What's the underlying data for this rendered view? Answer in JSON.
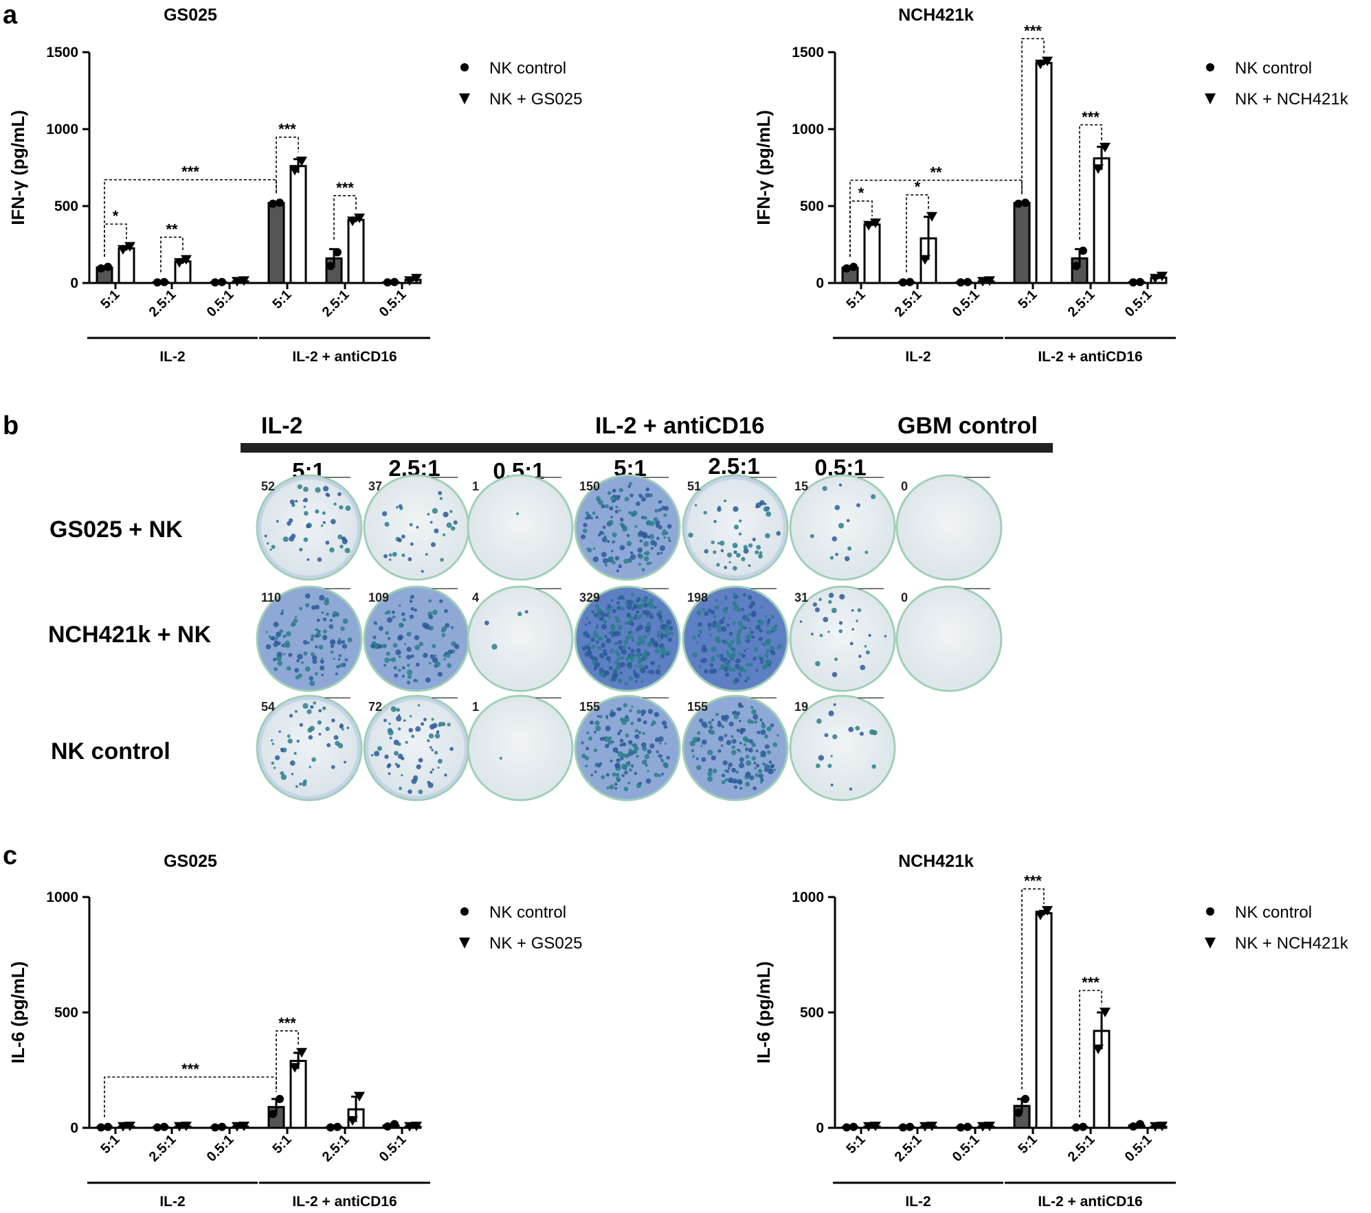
{
  "panel_letters": [
    "a",
    "b",
    "c"
  ],
  "legend_markers": {
    "control": "circle",
    "treated": "triangle-down"
  },
  "colors": {
    "control_bar": "#555555",
    "treated_bar": "#ffffff",
    "axis": "#000000",
    "well_border": "#9fd0b4",
    "spot": "#2c7f8c"
  },
  "chart_data": [
    {
      "id": "a-gs025",
      "type": "bar",
      "title": "GS025",
      "ylabel": "IFN-γ (pg/mL)",
      "ylim": [
        0,
        1500
      ],
      "yticks": [
        "0",
        "500",
        "1000",
        "1500"
      ],
      "categories": [
        "5:1",
        "2.5:1",
        "0.5:1",
        "5:1",
        "2.5:1",
        "0.5:1"
      ],
      "groups": [
        {
          "label": "IL-2",
          "span": [
            0,
            2
          ]
        },
        {
          "label": "IL-2 + antiCD16",
          "span": [
            3,
            5
          ]
        }
      ],
      "series": [
        {
          "name": "NK control",
          "values": [
            100,
            5,
            5,
            520,
            160,
            5
          ],
          "errors": [
            8,
            2,
            2,
            8,
            60,
            2
          ],
          "points": [
            [
              95,
              105
            ],
            [
              4,
              6
            ],
            [
              4,
              6
            ],
            [
              515,
              522
            ],
            [
              110,
              200
            ],
            [
              4,
              6
            ]
          ]
        },
        {
          "name": "NK + GS025",
          "values": [
            225,
            140,
            10,
            760,
            410,
            20
          ],
          "errors": [
            15,
            15,
            5,
            45,
            15,
            10
          ],
          "points": [
            [
              215,
              235
            ],
            [
              130,
              150
            ],
            [
              8,
              12
            ],
            [
              730,
              790
            ],
            [
              400,
              420
            ],
            [
              12,
              28
            ]
          ]
        }
      ],
      "annotations": [
        {
          "text": "*",
          "from": [
            0,
            0
          ],
          "to": [
            0,
            1
          ]
        },
        {
          "text": "**",
          "from": [
            1,
            0
          ],
          "to": [
            1,
            1
          ]
        },
        {
          "text": "***",
          "from": [
            3,
            0
          ],
          "to": [
            3,
            1
          ]
        },
        {
          "text": "***",
          "from": [
            4,
            0
          ],
          "to": [
            4,
            1
          ]
        },
        {
          "text": "***",
          "from": [
            0,
            0
          ],
          "to": [
            3,
            0
          ]
        }
      ]
    },
    {
      "id": "a-nch421k",
      "type": "bar",
      "title": "NCH421k",
      "ylabel": "IFN-γ (pg/mL)",
      "ylim": [
        0,
        1500
      ],
      "yticks": [
        "0",
        "500",
        "1000",
        "1500"
      ],
      "categories": [
        "5:1",
        "2.5:1",
        "0.5:1",
        "5:1",
        "2.5:1",
        "0.5:1"
      ],
      "groups": [
        {
          "label": "IL-2",
          "span": [
            0,
            2
          ]
        },
        {
          "label": "IL-2 + antiCD16",
          "span": [
            3,
            5
          ]
        }
      ],
      "series": [
        {
          "name": "NK control",
          "values": [
            100,
            5,
            5,
            520,
            160,
            5
          ],
          "errors": [
            8,
            2,
            2,
            5,
            60,
            2
          ],
          "points": [
            [
              95,
              105
            ],
            [
              4,
              6
            ],
            [
              4,
              6
            ],
            [
              515,
              522
            ],
            [
              110,
              210
            ],
            [
              4,
              6
            ]
          ]
        },
        {
          "name": "NK + NCH421k",
          "values": [
            380,
            290,
            10,
            1430,
            810,
            35
          ],
          "errors": [
            10,
            140,
            5,
            15,
            75,
            10
          ],
          "points": [
            [
              372,
              388
            ],
            [
              150,
              430
            ],
            [
              8,
              12
            ],
            [
              1420,
              1440
            ],
            [
              740,
              880
            ],
            [
              28,
              42
            ]
          ]
        }
      ],
      "annotations": [
        {
          "text": "*",
          "from": [
            0,
            0
          ],
          "to": [
            0,
            1
          ]
        },
        {
          "text": "*",
          "from": [
            1,
            0
          ],
          "to": [
            1,
            1
          ]
        },
        {
          "text": "***",
          "from": [
            3,
            0
          ],
          "to": [
            3,
            1
          ]
        },
        {
          "text": "***",
          "from": [
            4,
            0
          ],
          "to": [
            4,
            1
          ]
        },
        {
          "text": "**",
          "from": [
            0,
            0
          ],
          "to": [
            3,
            0
          ]
        }
      ]
    },
    {
      "id": "c-gs025",
      "type": "bar",
      "title": "GS025",
      "ylabel": "IL-6 (pg/mL)",
      "ylim": [
        0,
        1000
      ],
      "yticks": [
        "0",
        "500",
        "1000"
      ],
      "categories": [
        "5:1",
        "2.5:1",
        "0.5:1",
        "5:1",
        "2.5:1",
        "0.5:1"
      ],
      "groups": [
        {
          "label": "IL-2",
          "span": [
            0,
            2
          ]
        },
        {
          "label": "IL-2 + antiCD16",
          "span": [
            3,
            5
          ]
        }
      ],
      "series": [
        {
          "name": "NK control",
          "values": [
            3,
            3,
            3,
            90,
            3,
            10
          ],
          "errors": [
            1,
            1,
            1,
            35,
            1,
            5
          ],
          "points": [
            [
              2,
              4
            ],
            [
              2,
              4
            ],
            [
              2,
              4
            ],
            [
              60,
              125
            ],
            [
              2,
              4
            ],
            [
              6,
              16
            ]
          ]
        },
        {
          "name": "NK + GS025",
          "values": [
            5,
            5,
            5,
            290,
            80,
            5
          ],
          "errors": [
            2,
            2,
            2,
            35,
            55,
            2
          ],
          "points": [
            [
              4,
              6
            ],
            [
              4,
              6
            ],
            [
              4,
              6
            ],
            [
              260,
              325
            ],
            [
              30,
              135
            ],
            [
              4,
              6
            ]
          ]
        }
      ],
      "annotations": [
        {
          "text": "***",
          "from": [
            3,
            0
          ],
          "to": [
            3,
            1
          ]
        },
        {
          "text": "***",
          "from": [
            0,
            0
          ],
          "to": [
            3,
            0
          ]
        }
      ]
    },
    {
      "id": "c-nch421k",
      "type": "bar",
      "title": "NCH421k",
      "ylabel": "IL-6 (pg/mL)",
      "ylim": [
        0,
        1000
      ],
      "yticks": [
        "0",
        "500",
        "1000"
      ],
      "categories": [
        "5:1",
        "2.5:1",
        "0.5:1",
        "5:1",
        "2.5:1",
        "0.5:1"
      ],
      "groups": [
        {
          "label": "IL-2",
          "span": [
            0,
            2
          ]
        },
        {
          "label": "IL-2 + antiCD16",
          "span": [
            3,
            5
          ]
        }
      ],
      "series": [
        {
          "name": "NK control",
          "values": [
            3,
            3,
            3,
            95,
            3,
            10
          ],
          "errors": [
            1,
            1,
            1,
            30,
            1,
            5
          ],
          "points": [
            [
              2,
              4
            ],
            [
              2,
              4
            ],
            [
              2,
              4
            ],
            [
              65,
              125
            ],
            [
              2,
              4
            ],
            [
              6,
              16
            ]
          ]
        },
        {
          "name": "NK + NCH421k",
          "values": [
            5,
            5,
            5,
            930,
            420,
            5
          ],
          "errors": [
            2,
            2,
            2,
            10,
            80,
            2
          ],
          "points": [
            [
              4,
              6
            ],
            [
              4,
              6
            ],
            [
              4,
              6
            ],
            [
              920,
              940
            ],
            [
              340,
              500
            ],
            [
              4,
              6
            ]
          ]
        }
      ],
      "annotations": [
        {
          "text": "***",
          "from": [
            3,
            0
          ],
          "to": [
            3,
            1
          ]
        },
        {
          "text": "***",
          "from": [
            4,
            0
          ],
          "to": [
            4,
            1
          ]
        }
      ]
    }
  ],
  "wells": {
    "group_headers": [
      "IL-2",
      "IL-2 + antiCD16",
      "GBM control"
    ],
    "columns": [
      "5:1",
      "2.5:1",
      "0.5:1",
      "5:1",
      "2.5:1",
      "0.5:1"
    ],
    "rows": [
      {
        "label": "GS025 + NK",
        "counts": [
          "52",
          "37",
          "1",
          "150",
          "51",
          "15",
          "0"
        ]
      },
      {
        "label": "NCH421k + NK",
        "counts": [
          "110",
          "109",
          "4",
          "329",
          "198",
          "31",
          "0"
        ]
      },
      {
        "label": "NK control",
        "counts": [
          "54",
          "72",
          "1",
          "155",
          "155",
          "19"
        ]
      }
    ]
  }
}
